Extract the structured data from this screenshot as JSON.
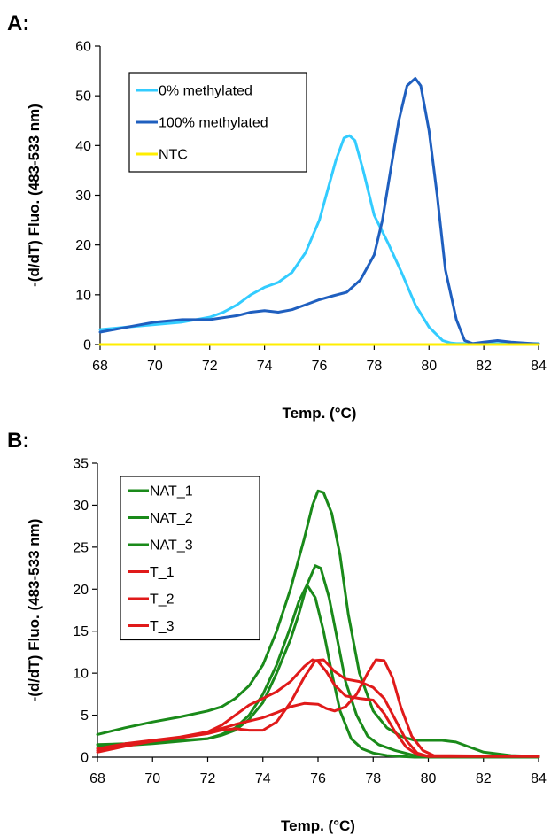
{
  "chart_data": [
    {
      "type": "line",
      "panel_label": "A:",
      "xlabel": "Temp. (°C)",
      "ylabel": "-(d/dT) Fluo. (483-533 nm)",
      "xlim": [
        68,
        84
      ],
      "ylim": [
        0,
        60
      ],
      "xticks": [
        68,
        70,
        72,
        74,
        76,
        78,
        80,
        82,
        84
      ],
      "yticks": [
        0,
        10,
        20,
        30,
        40,
        50,
        60
      ],
      "grid": false,
      "legend_position": "top-left",
      "series": [
        {
          "name": "0% methylated",
          "color": "#33ccff",
          "x": [
            68,
            69,
            70,
            71,
            72,
            72.5,
            73,
            73.5,
            74,
            74.5,
            75,
            75.5,
            76,
            76.3,
            76.6,
            76.9,
            77.1,
            77.3,
            77.6,
            78,
            78.5,
            79,
            79.5,
            80,
            80.5,
            80.8,
            81,
            84
          ],
          "y": [
            3,
            3.5,
            4,
            4.5,
            5.5,
            6.5,
            8,
            10,
            11.5,
            12.5,
            14.5,
            18.5,
            25,
            31,
            37,
            41.5,
            42,
            41,
            35,
            26,
            20.5,
            14.5,
            8,
            3.5,
            0.8,
            0.3,
            0.2,
            0.2
          ]
        },
        {
          "name": "100% methylated",
          "color": "#1f5fbf",
          "x": [
            68,
            69,
            70,
            71,
            72,
            73,
            73.5,
            74,
            74.5,
            75,
            75.5,
            76,
            76.5,
            77,
            77.5,
            78,
            78.3,
            78.6,
            78.9,
            79.2,
            79.5,
            79.7,
            80,
            80.3,
            80.6,
            81,
            81.3,
            81.6,
            82,
            82.5,
            83,
            84
          ],
          "y": [
            2.5,
            3.5,
            4.5,
            5,
            5,
            5.8,
            6.5,
            6.8,
            6.5,
            7,
            8,
            9,
            9.8,
            10.5,
            13,
            18,
            25,
            35,
            45,
            52,
            53.5,
            52,
            43,
            30,
            15,
            5,
            0.8,
            0.2,
            0.5,
            0.8,
            0.5,
            0.1
          ]
        },
        {
          "name": "NTC",
          "color": "#ffee00",
          "x": [
            68,
            84
          ],
          "y": [
            0,
            0
          ]
        }
      ]
    },
    {
      "type": "line",
      "panel_label": "B:",
      "xlabel": "Temp. (°C)",
      "ylabel": "-(d/dT) Fluo. (483-533 nm)",
      "xlim": [
        68,
        84
      ],
      "ylim": [
        0,
        35
      ],
      "xticks": [
        68,
        70,
        72,
        74,
        76,
        78,
        80,
        82,
        84
      ],
      "yticks": [
        0,
        5,
        10,
        15,
        20,
        25,
        30,
        35
      ],
      "grid": false,
      "legend_position": "top-left",
      "series": [
        {
          "name": "NAT_1",
          "color": "#1a8a1a",
          "x": [
            68,
            69,
            70,
            71,
            72,
            72.5,
            73,
            73.5,
            74,
            74.5,
            75,
            75.5,
            75.8,
            76,
            76.2,
            76.5,
            76.8,
            77.1,
            77.5,
            78,
            78.5,
            79,
            79.5,
            80,
            80.5,
            81,
            81.5,
            82,
            83,
            84
          ],
          "y": [
            2.7,
            3.5,
            4.2,
            4.8,
            5.5,
            6,
            7,
            8.5,
            11,
            15,
            20,
            26,
            30,
            31.7,
            31.5,
            29,
            24,
            17,
            10,
            5.5,
            3.5,
            2.5,
            2,
            2,
            2,
            1.8,
            1.2,
            0.6,
            0.2,
            0.1
          ]
        },
        {
          "name": "NAT_2",
          "color": "#1a8a1a",
          "x": [
            68,
            69,
            70,
            71,
            72,
            72.5,
            73,
            73.5,
            74,
            74.5,
            75,
            75.3,
            75.6,
            75.9,
            76.1,
            76.4,
            76.7,
            77,
            77.4,
            77.8,
            78.2,
            78.8,
            79.5,
            80,
            84
          ],
          "y": [
            1.5,
            1.6,
            1.8,
            2,
            2.2,
            2.6,
            3.2,
            4.5,
            6.5,
            10,
            14,
            17,
            20.5,
            22.8,
            22.5,
            19,
            14,
            9,
            5,
            2.5,
            1.5,
            0.8,
            0.2,
            0.1,
            0.1
          ]
        },
        {
          "name": "NAT_3",
          "color": "#1a8a1a",
          "x": [
            68,
            69,
            70,
            71,
            72,
            72.5,
            73,
            73.5,
            74,
            74.5,
            75,
            75.3,
            75.6,
            75.9,
            76.2,
            76.5,
            76.8,
            77.2,
            77.6,
            78,
            78.5,
            79,
            79.5,
            80,
            84
          ],
          "y": [
            1.2,
            1.4,
            1.6,
            1.9,
            2.2,
            2.7,
            3.5,
            5,
            7.5,
            11,
            15.5,
            18.5,
            20.5,
            19,
            15,
            10,
            5.5,
            2.2,
            1,
            0.5,
            0.2,
            0.1,
            0,
            0,
            0
          ]
        },
        {
          "name": "T_1",
          "color": "#e01a1a",
          "x": [
            68,
            69,
            70,
            71,
            72,
            72.5,
            73,
            73.5,
            74,
            74.5,
            75,
            75.5,
            75.9,
            76.2,
            76.6,
            77,
            77.5,
            78,
            78.4,
            78.8,
            79.2,
            79.6,
            80,
            84
          ],
          "y": [
            1,
            1.6,
            2,
            2.3,
            2.8,
            3.2,
            3.4,
            3.2,
            3.2,
            4.2,
            6.5,
            9.5,
            11.5,
            11.6,
            10.2,
            9.3,
            9,
            8.3,
            7,
            4.5,
            2,
            0.5,
            0.1,
            0.1
          ]
        },
        {
          "name": "T_2",
          "color": "#e01a1a",
          "x": [
            68,
            69,
            70,
            71,
            72,
            72.5,
            73,
            73.5,
            74,
            74.5,
            75,
            75.5,
            76,
            76.3,
            76.6,
            77,
            77.4,
            77.8,
            78.1,
            78.4,
            78.7,
            79,
            79.4,
            79.8,
            80.2,
            84
          ],
          "y": [
            0.8,
            1.4,
            2,
            2.4,
            3,
            3.4,
            3.9,
            4.3,
            4.7,
            5.3,
            6,
            6.4,
            6.3,
            5.8,
            5.5,
            6,
            7.5,
            10,
            11.6,
            11.5,
            9.5,
            6,
            2.5,
            0.8,
            0.2,
            0.1
          ]
        },
        {
          "name": "T_3",
          "color": "#e01a1a",
          "x": [
            68,
            69,
            70,
            71,
            72,
            72.5,
            73,
            73.5,
            74,
            74.5,
            75,
            75.5,
            75.8,
            76,
            76.3,
            76.6,
            77,
            77.5,
            78,
            78.4,
            78.8,
            79.2,
            79.6,
            80,
            84
          ],
          "y": [
            0.6,
            1.3,
            1.9,
            2.3,
            3,
            3.8,
            5,
            6.2,
            7,
            7.8,
            9,
            10.8,
            11.6,
            11.4,
            10.2,
            8.6,
            7.3,
            7,
            6.8,
            5.2,
            3,
            1.2,
            0.3,
            0.1,
            0.1
          ]
        }
      ]
    }
  ]
}
